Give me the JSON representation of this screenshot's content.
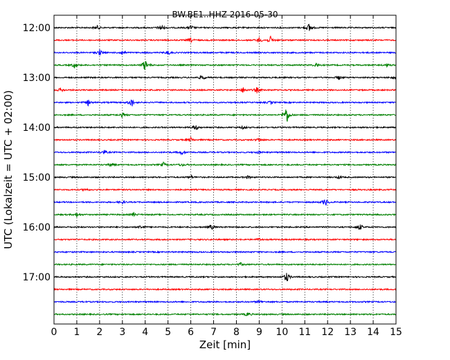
{
  "chart_data": {
    "type": "line",
    "title": "BW.BE1..HHZ 2016-05-30",
    "xlabel": "Zeit  [min]",
    "ylabel": "UTC (Lokalzeit = UTC + 02:00)",
    "xlim": [
      0,
      15
    ],
    "x_ticks": [
      "0",
      "1",
      "2",
      "3",
      "4",
      "5",
      "6",
      "7",
      "8",
      "9",
      "10",
      "11",
      "12",
      "13",
      "14",
      "15"
    ],
    "y_ticks": [
      "12:00",
      "13:00",
      "14:00",
      "15:00",
      "16:00",
      "17:00"
    ],
    "grid": "vertical dotted",
    "trace_colors": [
      "#000000",
      "#ff0000",
      "#0000ff",
      "#008000"
    ],
    "traces": [
      {
        "start": "12:00",
        "events": [
          [
            1.9,
            3
          ],
          [
            4.7,
            5
          ],
          [
            6.0,
            3
          ],
          [
            11.2,
            7
          ]
        ]
      },
      {
        "start": "12:15",
        "events": [
          [
            6.0,
            3
          ],
          [
            9.0,
            4
          ],
          [
            9.5,
            5
          ]
        ]
      },
      {
        "start": "12:30",
        "events": [
          [
            2.0,
            4
          ],
          [
            3.0,
            3
          ],
          [
            5.0,
            3
          ]
        ]
      },
      {
        "start": "12:45",
        "events": [
          [
            0.9,
            4
          ],
          [
            4.0,
            9
          ],
          [
            11.5,
            3
          ],
          [
            14.6,
            2
          ]
        ]
      },
      {
        "start": "13:00",
        "events": [
          [
            6.5,
            4
          ],
          [
            12.5,
            3
          ],
          [
            14.9,
            2
          ]
        ]
      },
      {
        "start": "13:15",
        "events": [
          [
            0.3,
            3
          ],
          [
            8.3,
            4
          ],
          [
            8.9,
            4
          ]
        ]
      },
      {
        "start": "13:30",
        "events": [
          [
            1.5,
            4
          ],
          [
            3.4,
            7
          ],
          [
            9.5,
            2
          ]
        ]
      },
      {
        "start": "13:45",
        "events": [
          [
            3.0,
            3
          ],
          [
            10.2,
            14
          ]
        ]
      },
      {
        "start": "14:00",
        "events": [
          [
            6.2,
            5
          ],
          [
            8.3,
            2
          ]
        ]
      },
      {
        "start": "14:15",
        "events": [
          [
            6.0,
            3
          ],
          [
            9.0,
            3
          ]
        ]
      },
      {
        "start": "14:30",
        "events": [
          [
            2.2,
            3
          ],
          [
            5.6,
            3
          ],
          [
            9.0,
            2
          ]
        ]
      },
      {
        "start": "14:45",
        "events": [
          [
            2.5,
            3
          ],
          [
            4.8,
            3
          ],
          [
            5.6,
            2
          ]
        ]
      },
      {
        "start": "15:00",
        "events": [
          [
            6.0,
            3
          ],
          [
            8.5,
            2
          ],
          [
            12.5,
            2
          ]
        ]
      },
      {
        "start": "15:15",
        "events": [
          [
            1.4,
            2
          ]
        ]
      },
      {
        "start": "15:30",
        "events": [
          [
            3.0,
            2
          ],
          [
            11.9,
            6
          ]
        ]
      },
      {
        "start": "15:45",
        "events": [
          [
            1.0,
            3
          ],
          [
            3.5,
            3
          ]
        ]
      },
      {
        "start": "16:00",
        "events": [
          [
            3.8,
            3
          ],
          [
            6.9,
            4
          ],
          [
            13.4,
            5
          ]
        ]
      },
      {
        "start": "16:15",
        "events": [
          [
            9.0,
            2
          ]
        ]
      },
      {
        "start": "16:30",
        "events": []
      },
      {
        "start": "16:45",
        "events": [
          [
            8.2,
            2
          ]
        ]
      },
      {
        "start": "17:00",
        "events": [
          [
            10.2,
            8
          ]
        ]
      },
      {
        "start": "17:15",
        "events": []
      },
      {
        "start": "17:30",
        "events": [
          [
            9.0,
            2
          ]
        ]
      },
      {
        "start": "17:45",
        "events": [
          [
            8.5,
            3
          ]
        ]
      }
    ]
  }
}
